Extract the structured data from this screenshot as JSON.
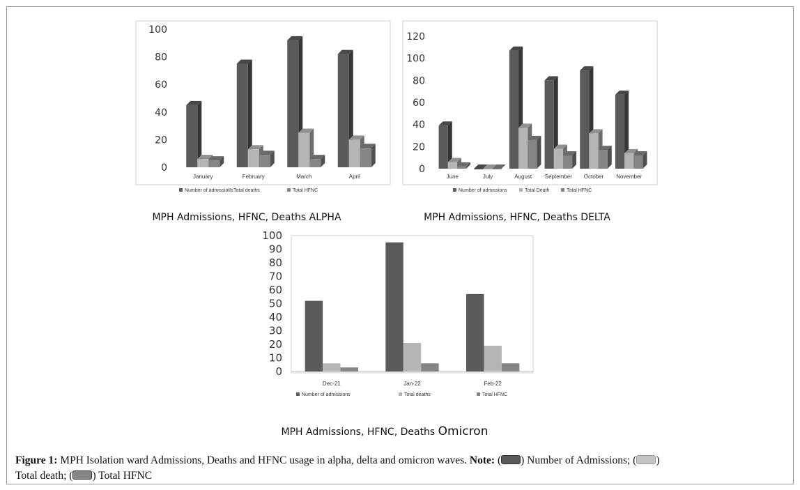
{
  "chart_data": [
    {
      "type": "bar",
      "title": "MPH Admissions, HFNC, Deaths ALPHA",
      "categories": [
        "January",
        "February",
        "March",
        "April"
      ],
      "series": [
        {
          "name": "Number of admissions",
          "values": [
            45,
            75,
            92,
            82
          ],
          "color": "#5a5a5a"
        },
        {
          "name": "Total deaths",
          "values": [
            6,
            13,
            25,
            20
          ],
          "color": "#b5b5b5"
        },
        {
          "name": "Total HFNC",
          "values": [
            5,
            9,
            6,
            14
          ],
          "color": "#858585"
        }
      ],
      "yticks": [
        0,
        20,
        40,
        60,
        80,
        100
      ],
      "ylim": [
        0,
        100
      ],
      "style": "3d",
      "grid": false,
      "legend": "bottom"
    },
    {
      "type": "bar",
      "title": "MPH Admissions, HFNC, Deaths DELTA",
      "categories": [
        "June",
        "July",
        "August",
        "September",
        "October",
        "November"
      ],
      "series": [
        {
          "name": "Number of admissions",
          "values": [
            39,
            0,
            107,
            80,
            89,
            67
          ],
          "color": "#5a5a5a"
        },
        {
          "name": "Total Death",
          "values": [
            6,
            0,
            37,
            18,
            32,
            14
          ],
          "color": "#b5b5b5"
        },
        {
          "name": "Total HFNC",
          "values": [
            2,
            0,
            26,
            12,
            17,
            12
          ],
          "color": "#858585"
        }
      ],
      "yticks": [
        0,
        20,
        40,
        60,
        80,
        100,
        120
      ],
      "ylim": [
        0,
        120
      ],
      "style": "3d",
      "grid": false,
      "legend": "bottom"
    },
    {
      "type": "bar",
      "title_main": "MPH Admissions, HFNC, Deaths",
      "title_suffix": "Omicron",
      "categories": [
        "Dec-21",
        "Jan-22",
        "Feb-22"
      ],
      "series": [
        {
          "name": "Number of admissions",
          "values": [
            52,
            95,
            57
          ],
          "color": "#5a5a5a"
        },
        {
          "name": "Total deaths",
          "values": [
            6,
            21,
            19
          ],
          "color": "#b5b5b5"
        },
        {
          "name": "Total HFNC",
          "values": [
            3,
            6,
            6
          ],
          "color": "#858585"
        }
      ],
      "yticks": [
        0,
        10,
        20,
        30,
        40,
        50,
        60,
        70,
        80,
        90,
        100
      ],
      "ylim": [
        0,
        100
      ],
      "style": "flat",
      "grid": false,
      "legend": "bottom"
    }
  ],
  "caption": {
    "label": "Figure 1:",
    "text": " MPH Isolation ward Admissions, Deaths and HFNC usage in alpha, delta and omicron waves. ",
    "note_label": "Note:",
    "k1": " Number of Admissions; ",
    "k2": " Total death; ",
    "k3": " Total HFNC",
    "key_colors": [
      "#5a5a5a",
      "#b5b5b5",
      "#858585"
    ]
  }
}
